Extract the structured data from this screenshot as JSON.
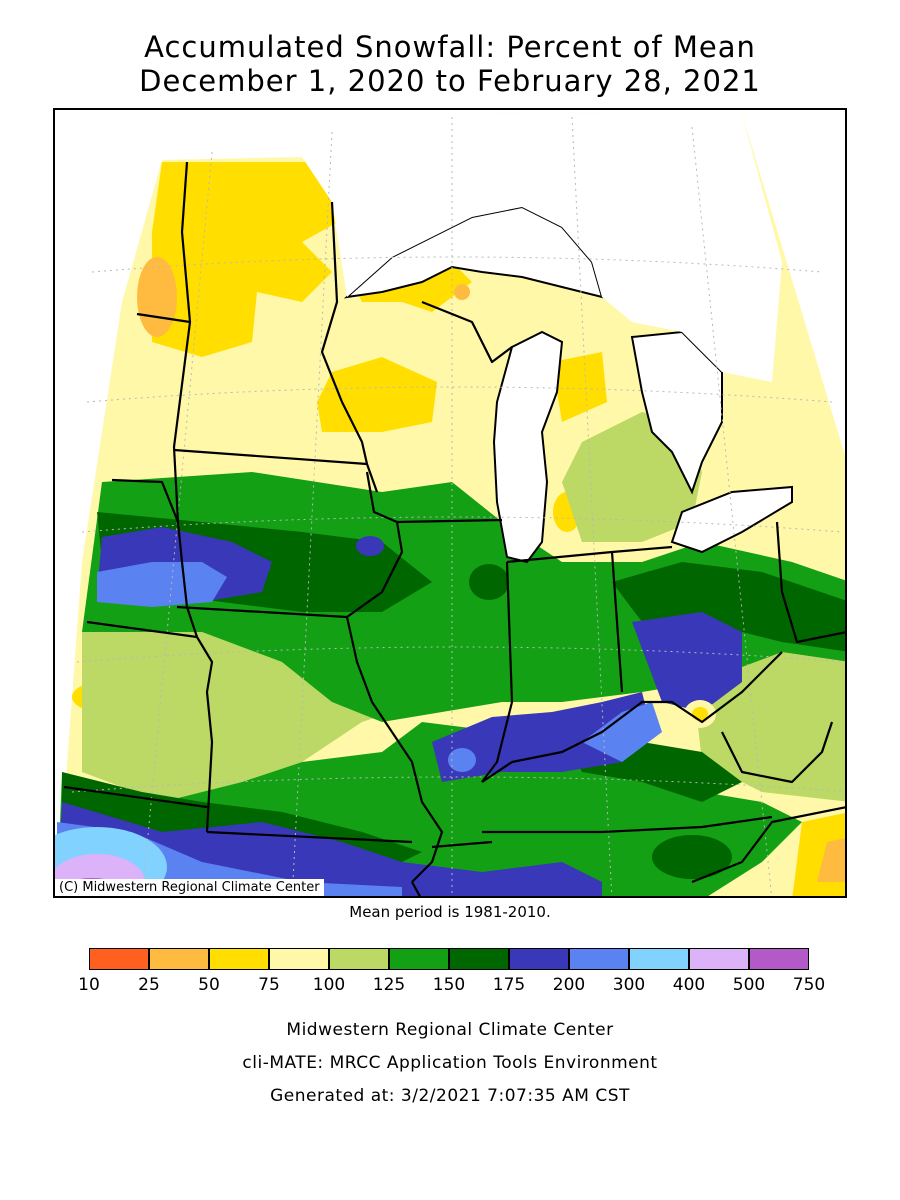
{
  "title": {
    "line1": "Accumulated Snowfall: Percent of Mean",
    "line2": "December 1, 2020 to February 28, 2021"
  },
  "map": {
    "copyright": "(C) Midwestern Regional Climate Center",
    "mean_period": "Mean period is 1981-2010."
  },
  "legend": {
    "labels": [
      "10",
      "25",
      "50",
      "75",
      "100",
      "125",
      "150",
      "175",
      "200",
      "300",
      "400",
      "500",
      "750"
    ],
    "colors": [
      "#ff6020",
      "#ffbb40",
      "#ffde00",
      "#fff8a8",
      "#bcd865",
      "#14a014",
      "#006600",
      "#3838b8",
      "#5a82f0",
      "#82d2ff",
      "#dcb2f8",
      "#b45ac8"
    ]
  },
  "footer": {
    "line1": "Midwestern Regional Climate Center",
    "line2": "cli-MATE: MRCC Application Tools Environment",
    "line3": "Generated at: 3/2/2021 7:07:35 AM CST"
  }
}
